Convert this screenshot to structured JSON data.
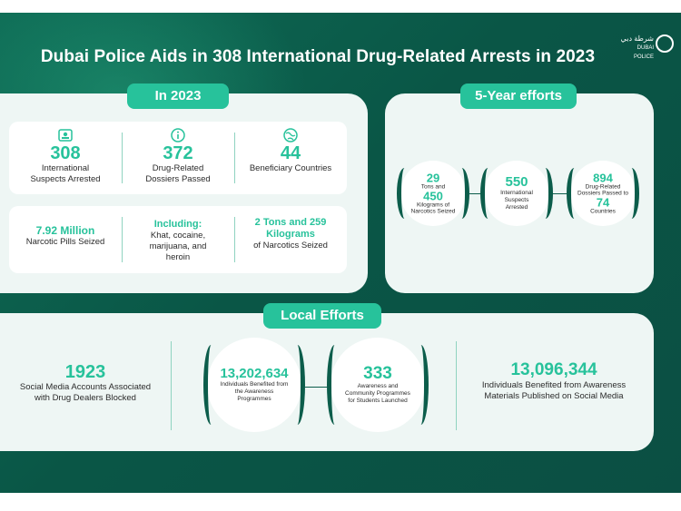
{
  "title": "Dubai Police Aids in 308 International Drug-Related Arrests in 2023",
  "logo": {
    "arabic": "شرطة دبي",
    "english": "DUBAI POLICE"
  },
  "in2023": {
    "heading": "In 2023",
    "row1": [
      {
        "icon": "person-id-icon",
        "value": "308",
        "label": "International Suspects Arrested"
      },
      {
        "icon": "info-icon",
        "value": "372",
        "label": "Drug-Related Dossiers Passed"
      },
      {
        "icon": "globe-icon",
        "value": "44",
        "label": "Beneficiary Countries"
      }
    ],
    "row2": [
      {
        "value": "7.92 Million",
        "label": "Narcotic Pills Seized"
      },
      {
        "value": "Including:",
        "label": "Khat, cocaine, marijuana, and heroin"
      },
      {
        "value": "2 Tons and 259 Kilograms",
        "label": "of Narcotics Seized"
      }
    ]
  },
  "fiveyear": {
    "heading": "5-Year efforts",
    "c1": {
      "value_a": "29",
      "text_a": "Tons and",
      "value_b": "450",
      "text_b": "Kilograms of Narcotics Seized"
    },
    "c2": {
      "value": "550",
      "label": "International Suspects Arrested"
    },
    "c3": {
      "value_a": "894",
      "text_a": "Drug-Related Dossiers Passed to",
      "value_b": "74",
      "text_b": "Countries"
    }
  },
  "local": {
    "heading": "Local Efforts",
    "left": {
      "value": "1923",
      "label": "Social Media Accounts Associated with Drug Dealers Blocked"
    },
    "c1": {
      "value": "13,202,634",
      "label": "Individuals Benefited from the Awareness Programmes"
    },
    "c2": {
      "value": "333",
      "label": "Awareness and Community Programmes for Students Launched"
    },
    "right": {
      "value": "13,096,344",
      "label": "Individuals Benefited from Awareness Materials Published on Social Media"
    }
  },
  "colors": {
    "bg": "#0b5a48",
    "accent": "#27c29b",
    "panel": "#eef6f4"
  }
}
